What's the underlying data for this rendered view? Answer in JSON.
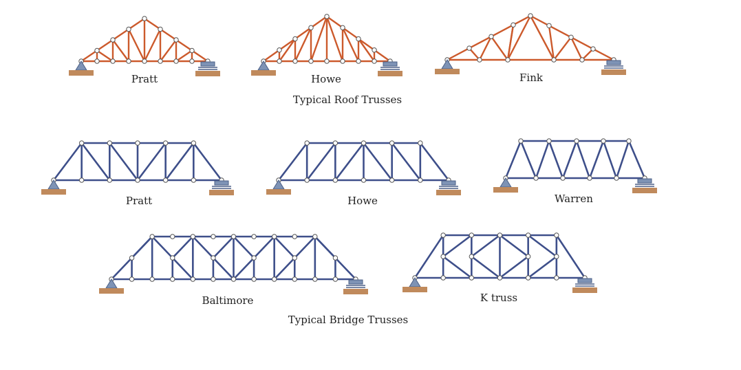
{
  "roof_group_caption": "Typical Roof Trusses",
  "bridge_group_caption": "Typical Bridge Trusses",
  "trusses": {
    "roof_pratt": "Pratt",
    "roof_howe": "Howe",
    "roof_fink": "Fink",
    "bridge_pratt": "Pratt",
    "bridge_howe": "Howe",
    "bridge_warren": "Warren",
    "bridge_baltimore": "Baltimore",
    "bridge_k": "K truss"
  },
  "colors": {
    "roof_member": "#cc5a2c",
    "bridge_member": "#3e4f8a",
    "support": "#7e93b5",
    "ground": "#c08a5c"
  }
}
